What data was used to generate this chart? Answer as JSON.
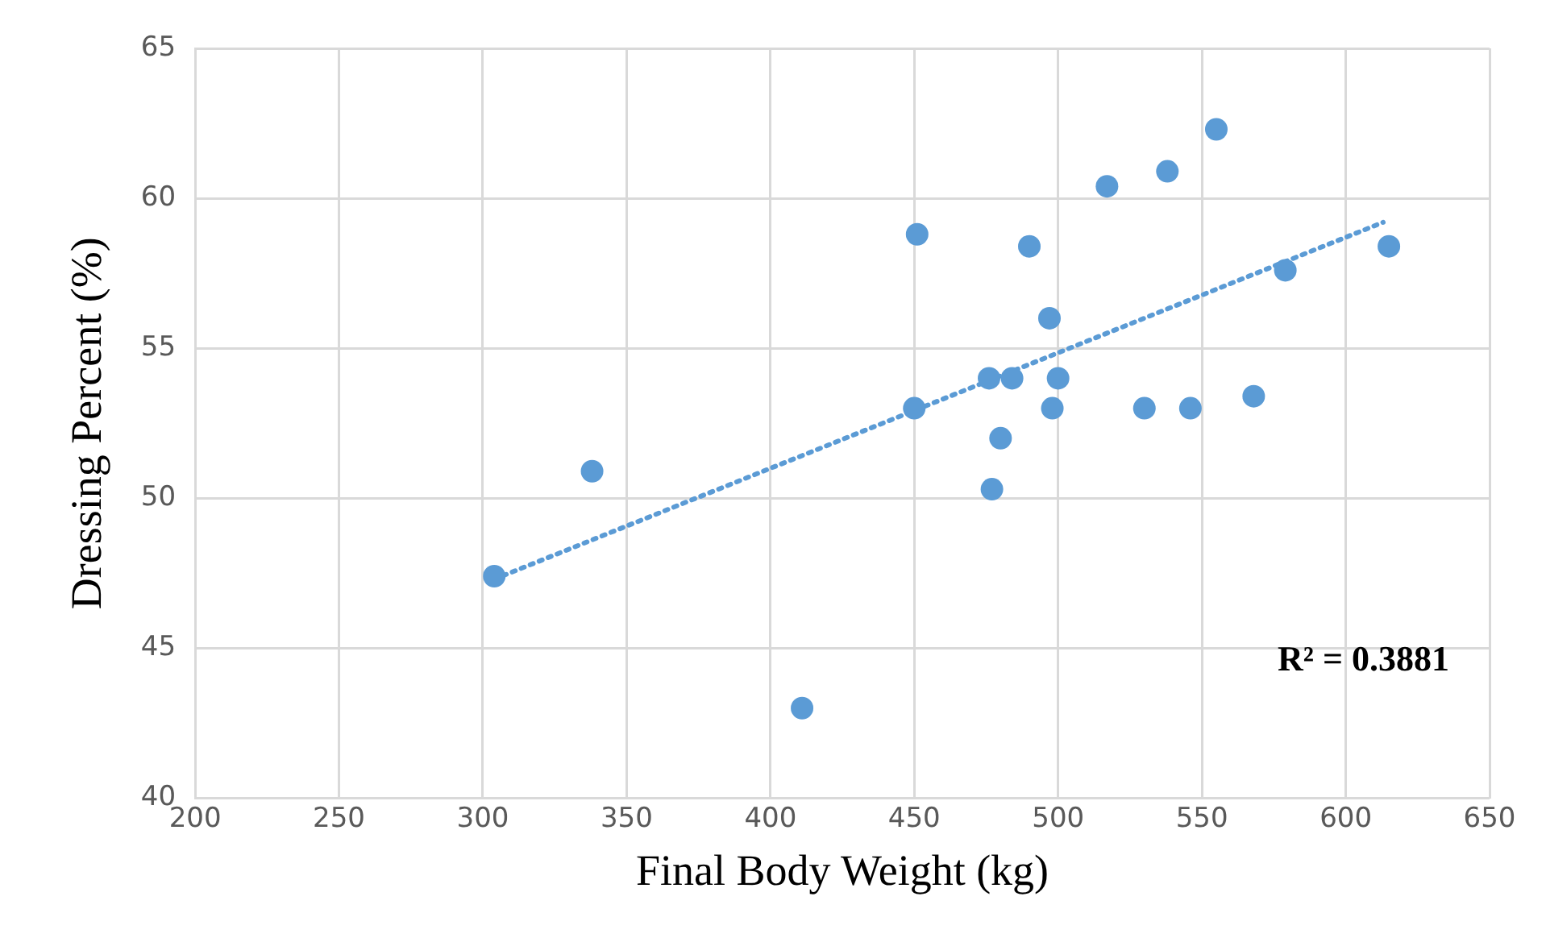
{
  "chart_data": {
    "type": "scatter",
    "xlabel": "Final Body Weight (kg)",
    "ylabel": "Dressing Percent (%)",
    "series": [
      {
        "type": "scatter",
        "color": "#5b9bd5",
        "marker": "circle",
        "x": [
          304,
          338,
          411,
          450,
          451,
          476,
          477,
          480,
          484,
          490,
          497,
          498,
          500,
          517,
          530,
          538,
          546,
          555,
          568,
          579,
          615
        ],
        "values": [
          47.4,
          50.9,
          43.0,
          53.0,
          58.8,
          54.0,
          50.3,
          52.0,
          54.0,
          58.4,
          56.0,
          53.0,
          54.0,
          60.4,
          53.0,
          60.9,
          53.0,
          62.3,
          53.4,
          57.6,
          58.4
        ]
      },
      {
        "type": "line",
        "color": "#5b9bd5",
        "line_style": "dotted",
        "marker": "none",
        "x": [
          304,
          613
        ],
        "values": [
          47.3,
          59.2
        ]
      }
    ],
    "annotations": [
      "R² = 0.3881"
    ],
    "xlim": [
      200,
      650
    ],
    "xticks": [
      200,
      250,
      300,
      350,
      400,
      450,
      500,
      550,
      600,
      650
    ],
    "ylim": [
      40,
      65
    ],
    "yticks": [
      40,
      45,
      50,
      55,
      60,
      65
    ],
    "grid": true,
    "legend": false
  }
}
